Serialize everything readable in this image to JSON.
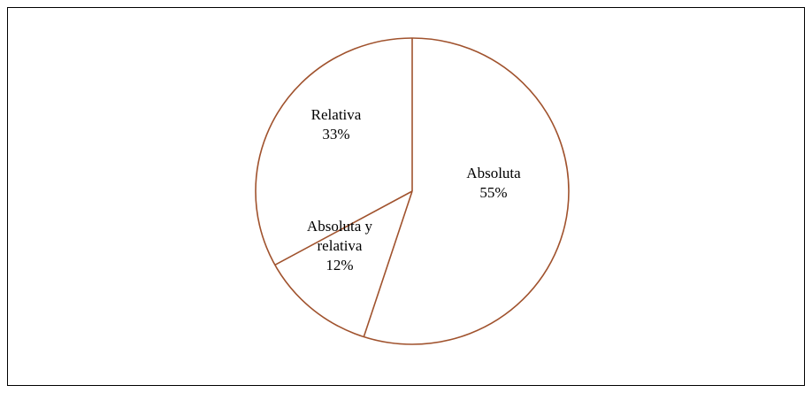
{
  "chart_data": {
    "type": "pie",
    "title": "",
    "slices": [
      {
        "name": "Absoluta",
        "label_lines": [
          "Absoluta"
        ],
        "percent_label": "55%",
        "value": 55
      },
      {
        "name": "Absoluta y relativa",
        "label_lines": [
          "Absoluta y",
          "relativa"
        ],
        "percent_label": "12%",
        "value": 12
      },
      {
        "name": "Relativa",
        "label_lines": [
          "Relativa"
        ],
        "percent_label": "33%",
        "value": 33
      }
    ],
    "start_angle": "12 o'clock",
    "direction": "clockwise",
    "legend": "none",
    "colors": {
      "outline": "#a0522d",
      "fill": "#ffffff",
      "frame": "#000000",
      "text": "#000000"
    }
  }
}
